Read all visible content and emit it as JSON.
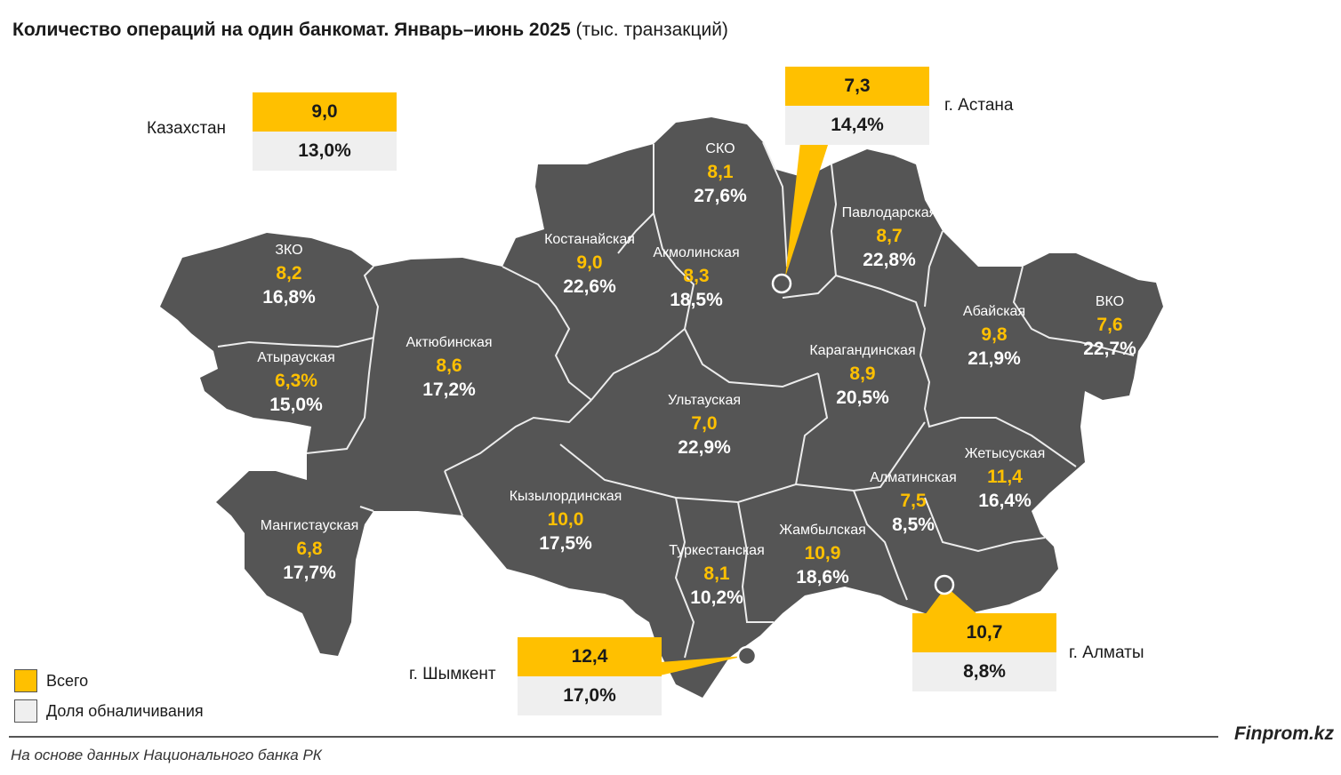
{
  "title": {
    "bold": "Количество операций на один банкомат. Январь–июнь 2025",
    "normal": "(тыс. транзакций)"
  },
  "colors": {
    "map_fill": "#555555",
    "border": "#ececec",
    "total": "#ffc000",
    "share_box": "#efefef"
  },
  "kazakhstan": {
    "label": "Казахстан",
    "total": "9,0",
    "share": "13,0%"
  },
  "cities": {
    "astana": {
      "label": "г. Астана",
      "total": "7,3",
      "share": "14,4%"
    },
    "almaty": {
      "label": "г. Алматы",
      "total": "10,7",
      "share": "8,8%"
    },
    "shymkent": {
      "label": "г. Шымкент",
      "total": "12,4",
      "share": "17,0%"
    }
  },
  "regions": [
    {
      "name": "ЗКО",
      "total": "8,2",
      "share": "16,8%"
    },
    {
      "name": "Атырауская",
      "total": "6,3%",
      "share": "15,0%"
    },
    {
      "name": "Мангистауская",
      "total": "6,8",
      "share": "17,7%"
    },
    {
      "name": "Актюбинская",
      "total": "8,6",
      "share": "17,2%"
    },
    {
      "name": "Костанайская",
      "total": "9,0",
      "share": "22,6%"
    },
    {
      "name": "СКО",
      "total": "8,1",
      "share": "27,6%"
    },
    {
      "name": "Акмолинская",
      "total": "8,3",
      "share": "18,5%"
    },
    {
      "name": "Павлодарская",
      "total": "8,7",
      "share": "22,8%"
    },
    {
      "name": "Карагандинская",
      "total": "8,9",
      "share": "20,5%"
    },
    {
      "name": "Ультауская",
      "total": "7,0",
      "share": "22,9%"
    },
    {
      "name": "Абайская",
      "total": "9,8",
      "share": "21,9%"
    },
    {
      "name": "ВКО",
      "total": "7,6",
      "share": "22,7%"
    },
    {
      "name": "Кызылординская",
      "total": "10,0",
      "share": "17,5%"
    },
    {
      "name": "Туркестанская",
      "total": "8,1",
      "share": "10,2%"
    },
    {
      "name": "Жамбылская",
      "total": "10,9",
      "share": "18,6%"
    },
    {
      "name": "Алматинская",
      "total": "7,5",
      "share": "8,5%"
    },
    {
      "name": "Жетысуская",
      "total": "11,4",
      "share": "16,4%"
    }
  ],
  "legend": {
    "total_label": "Всего",
    "share_label": "Доля обналичивания"
  },
  "brand": "Finprom.kz",
  "source": "На основе данных Национального банка РК"
}
